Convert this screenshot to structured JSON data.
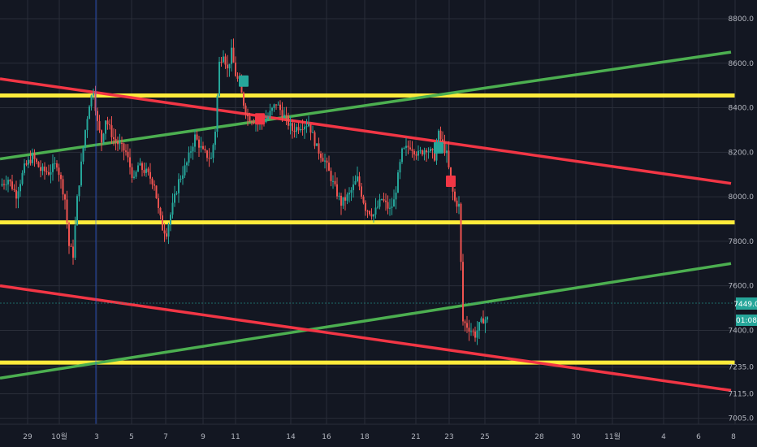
{
  "chart_data": {
    "type": "candlestick",
    "y_axis": {
      "ticks": [
        "8800.0",
        "8600.0",
        "8400.0",
        "8200.0",
        "8000.0",
        "7800.0",
        "7600.0",
        "7400.0",
        "7235.0",
        "7115.0",
        "7005.0"
      ],
      "tick_values": [
        8800,
        8600,
        8400,
        8200,
        8000,
        7800,
        7600,
        7400,
        7235,
        7115,
        7005
      ],
      "position": "right",
      "grid": true
    },
    "x_axis": {
      "ticks": [
        "29",
        "10월",
        "3",
        "5",
        "7",
        "9",
        "11",
        "14",
        "16",
        "18",
        "21",
        "23",
        "25",
        "28",
        "30",
        "11월",
        "4",
        "6",
        "8"
      ],
      "grid": true
    },
    "last_price_label": "7449.0",
    "countdown_label": "01:08",
    "price_path": [
      [
        0,
        8050
      ],
      [
        2,
        8080
      ],
      [
        4,
        8010
      ],
      [
        6,
        8130
      ],
      [
        8,
        8180
      ],
      [
        10,
        8120
      ],
      [
        12,
        8110
      ],
      [
        14,
        8150
      ],
      [
        16,
        7990
      ],
      [
        17,
        7780
      ],
      [
        18,
        7740
      ],
      [
        19,
        7990
      ],
      [
        21,
        8300
      ],
      [
        22,
        8420
      ],
      [
        23,
        8480
      ],
      [
        24,
        8330
      ],
      [
        25,
        8250
      ],
      [
        26,
        8350
      ],
      [
        28,
        8260
      ],
      [
        30,
        8220
      ],
      [
        31,
        8200
      ],
      [
        33,
        8070
      ],
      [
        34,
        8140
      ],
      [
        36,
        8110
      ],
      [
        38,
        8060
      ],
      [
        39,
        7940
      ],
      [
        40,
        7860
      ],
      [
        41,
        7840
      ],
      [
        42,
        7920
      ],
      [
        44,
        8070
      ],
      [
        46,
        8150
      ],
      [
        48,
        8270
      ],
      [
        50,
        8200
      ],
      [
        52,
        8170
      ],
      [
        53,
        8300
      ],
      [
        54,
        8600
      ],
      [
        55,
        8650
      ],
      [
        56,
        8570
      ],
      [
        57,
        8650
      ],
      [
        58,
        8550
      ],
      [
        59,
        8500
      ],
      [
        60,
        8420
      ],
      [
        61,
        8360
      ],
      [
        62,
        8350
      ],
      [
        64,
        8330
      ],
      [
        66,
        8360
      ],
      [
        68,
        8420
      ],
      [
        70,
        8360
      ],
      [
        72,
        8300
      ],
      [
        74,
        8320
      ],
      [
        76,
        8330
      ],
      [
        78,
        8220
      ],
      [
        80,
        8160
      ],
      [
        82,
        8060
      ],
      [
        84,
        7970
      ],
      [
        86,
        8010
      ],
      [
        88,
        8080
      ],
      [
        90,
        7950
      ],
      [
        92,
        7920
      ],
      [
        94,
        7990
      ],
      [
        96,
        7940
      ],
      [
        97,
        7980
      ],
      [
        99,
        8200
      ],
      [
        101,
        8230
      ],
      [
        103,
        8190
      ],
      [
        105,
        8220
      ],
      [
        107,
        8180
      ],
      [
        108,
        8280
      ],
      [
        110,
        8190
      ],
      [
        111,
        8060
      ],
      [
        112,
        7980
      ],
      [
        113,
        7960
      ],
      [
        114,
        7440
      ],
      [
        115,
        7420
      ],
      [
        116,
        7400
      ],
      [
        117,
        7380
      ],
      [
        118,
        7420
      ],
      [
        119,
        7450
      ],
      [
        120,
        7449
      ]
    ],
    "trendlines": [
      {
        "color": "#ffeb3b",
        "type": "horizontal",
        "price": 8455
      },
      {
        "color": "#ffeb3b",
        "type": "horizontal",
        "price": 7885
      },
      {
        "color": "#ffeb3b",
        "type": "horizontal",
        "price": 7255
      },
      {
        "color": "#4caf50",
        "type": "sloped",
        "from": [
          0,
          8170
        ],
        "to": [
          180,
          8650
        ]
      },
      {
        "color": "#4caf50",
        "type": "sloped",
        "from": [
          0,
          7185
        ],
        "to": [
          180,
          7700
        ]
      },
      {
        "color": "#f23645",
        "type": "sloped",
        "from": [
          0,
          8530
        ],
        "to": [
          180,
          8060
        ]
      },
      {
        "color": "#f23645",
        "type": "sloped",
        "from": [
          0,
          7600
        ],
        "to": [
          180,
          7130
        ]
      }
    ],
    "markers": [
      {
        "t": 60,
        "price": 8520,
        "color": "#26a69a"
      },
      {
        "t": 64,
        "price": 8350,
        "color": "#f23645"
      },
      {
        "t": 108,
        "price": 8220,
        "color": "#26a69a"
      },
      {
        "t": 111,
        "price": 8070,
        "color": "#f23645"
      }
    ],
    "colors": {
      "background": "#131722",
      "grid": "#2a2e39",
      "up": "#26a69a",
      "down": "#ef5350",
      "crosshair": "#2962ff"
    }
  }
}
